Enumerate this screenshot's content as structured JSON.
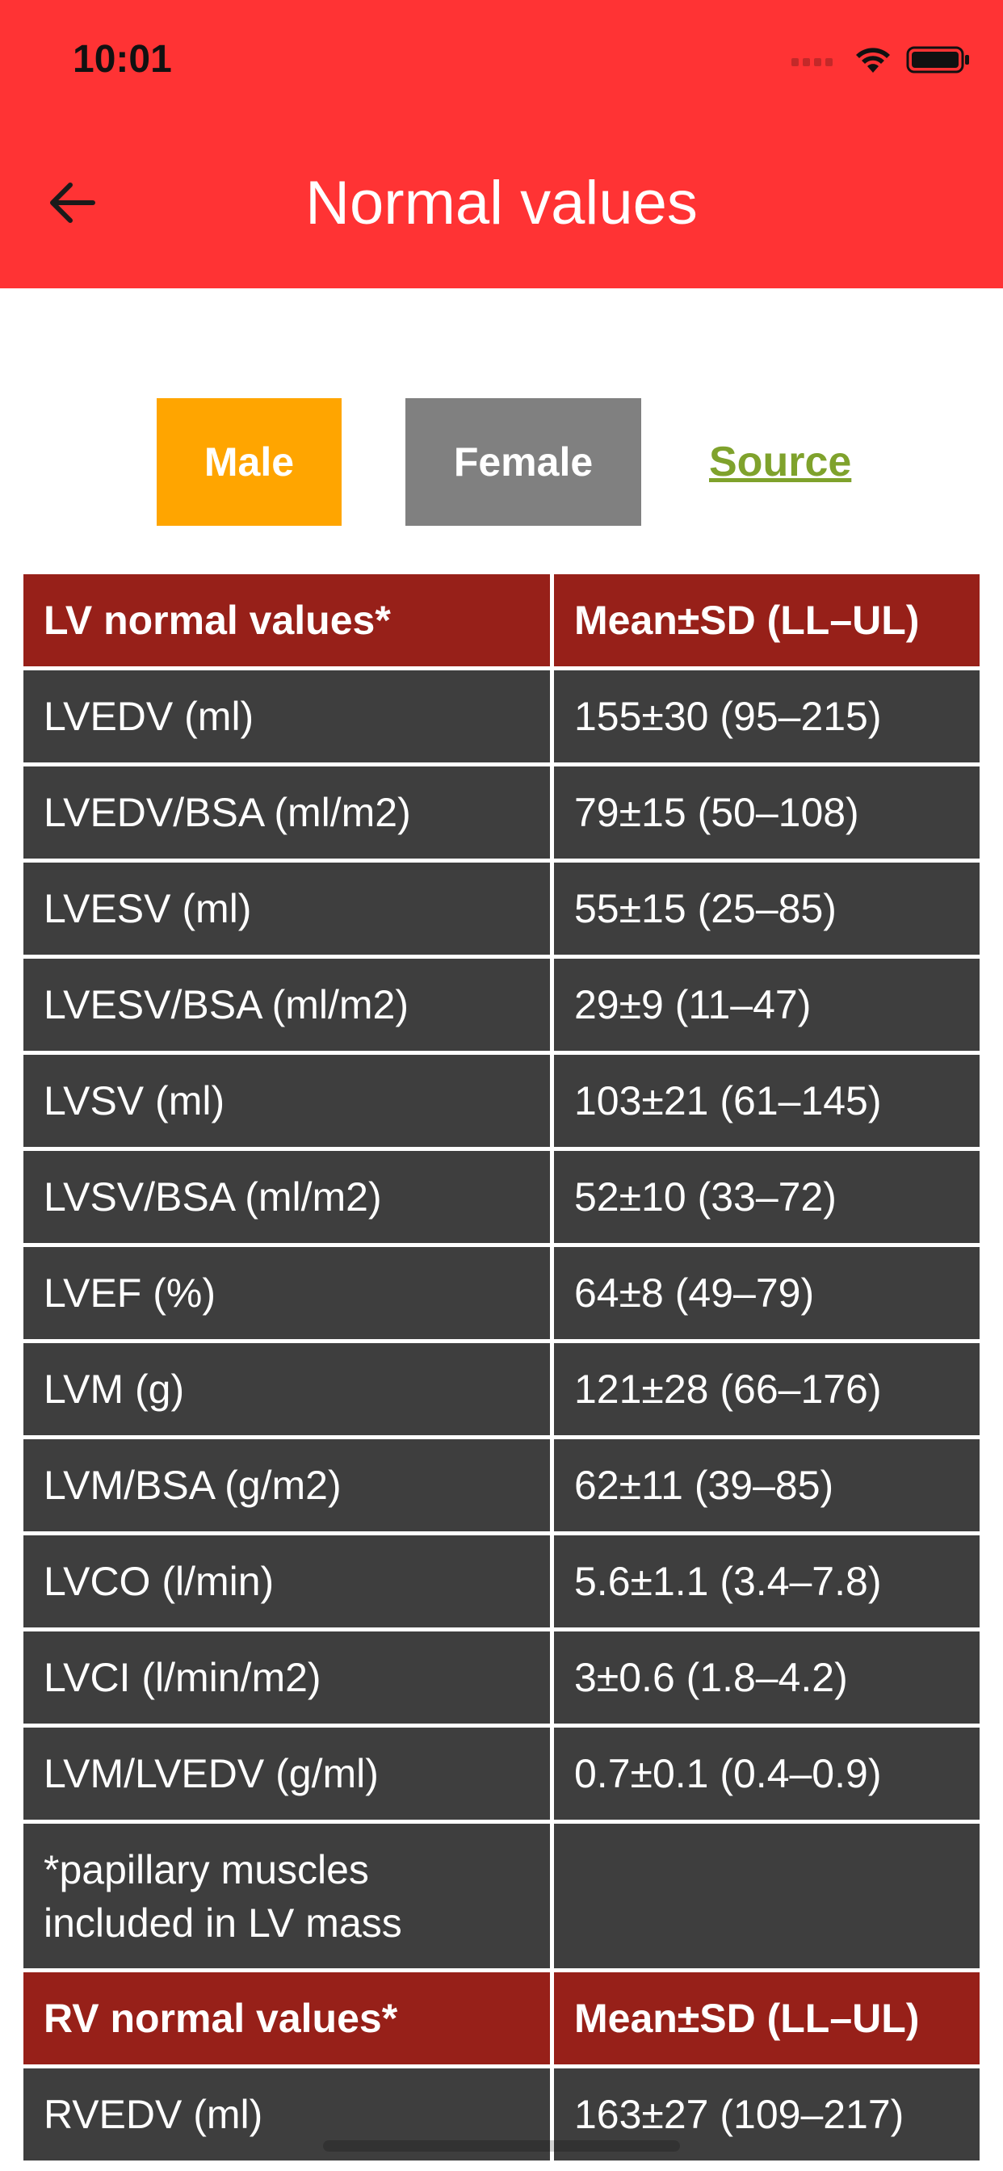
{
  "status_bar": {
    "time": "10:01"
  },
  "nav": {
    "title": "Normal values"
  },
  "filters": {
    "male_label": "Male",
    "female_label": "Female",
    "source_label": "Source"
  },
  "colors": {
    "header_red": "#ff3334",
    "male_orange": "#ffa500",
    "female_gray": "#808080",
    "table_header": "#972019",
    "table_cell": "#3e3e3e",
    "source_green": "#7fa22c"
  },
  "lv_table": {
    "header": [
      "LV normal values*",
      "Mean±SD (LL–UL)"
    ],
    "rows": [
      [
        "LVEDV (ml)",
        "155±30 (95–215)"
      ],
      [
        "LVEDV/BSA (ml/m2)",
        "79±15 (50–108)"
      ],
      [
        "LVESV (ml)",
        "55±15 (25–85)"
      ],
      [
        "LVESV/BSA (ml/m2)",
        "29±9 (11–47)"
      ],
      [
        "LVSV (ml)",
        "103±21 (61–145)"
      ],
      [
        "LVSV/BSA (ml/m2)",
        "52±10 (33–72)"
      ],
      [
        "LVEF (%)",
        "64±8 (49–79)"
      ],
      [
        "LVM (g)",
        "121±28 (66–176)"
      ],
      [
        "LVM/BSA (g/m2)",
        "62±11 (39–85)"
      ],
      [
        "LVCO (l/min)",
        "5.6±1.1 (3.4–7.8)"
      ],
      [
        "LVCI (l/min/m2)",
        "3±0.6 (1.8–4.2)"
      ],
      [
        "LVM/LVEDV (g/ml)",
        "0.7±0.1 (0.4–0.9)"
      ]
    ],
    "note_line1": "*papillary muscles",
    "note_line2": "included in LV mass"
  },
  "rv_table": {
    "header": [
      "RV normal values*",
      "Mean±SD (LL–UL)"
    ],
    "rows": [
      [
        "RVEDV (ml)",
        "163±27 (109–217)"
      ]
    ]
  }
}
